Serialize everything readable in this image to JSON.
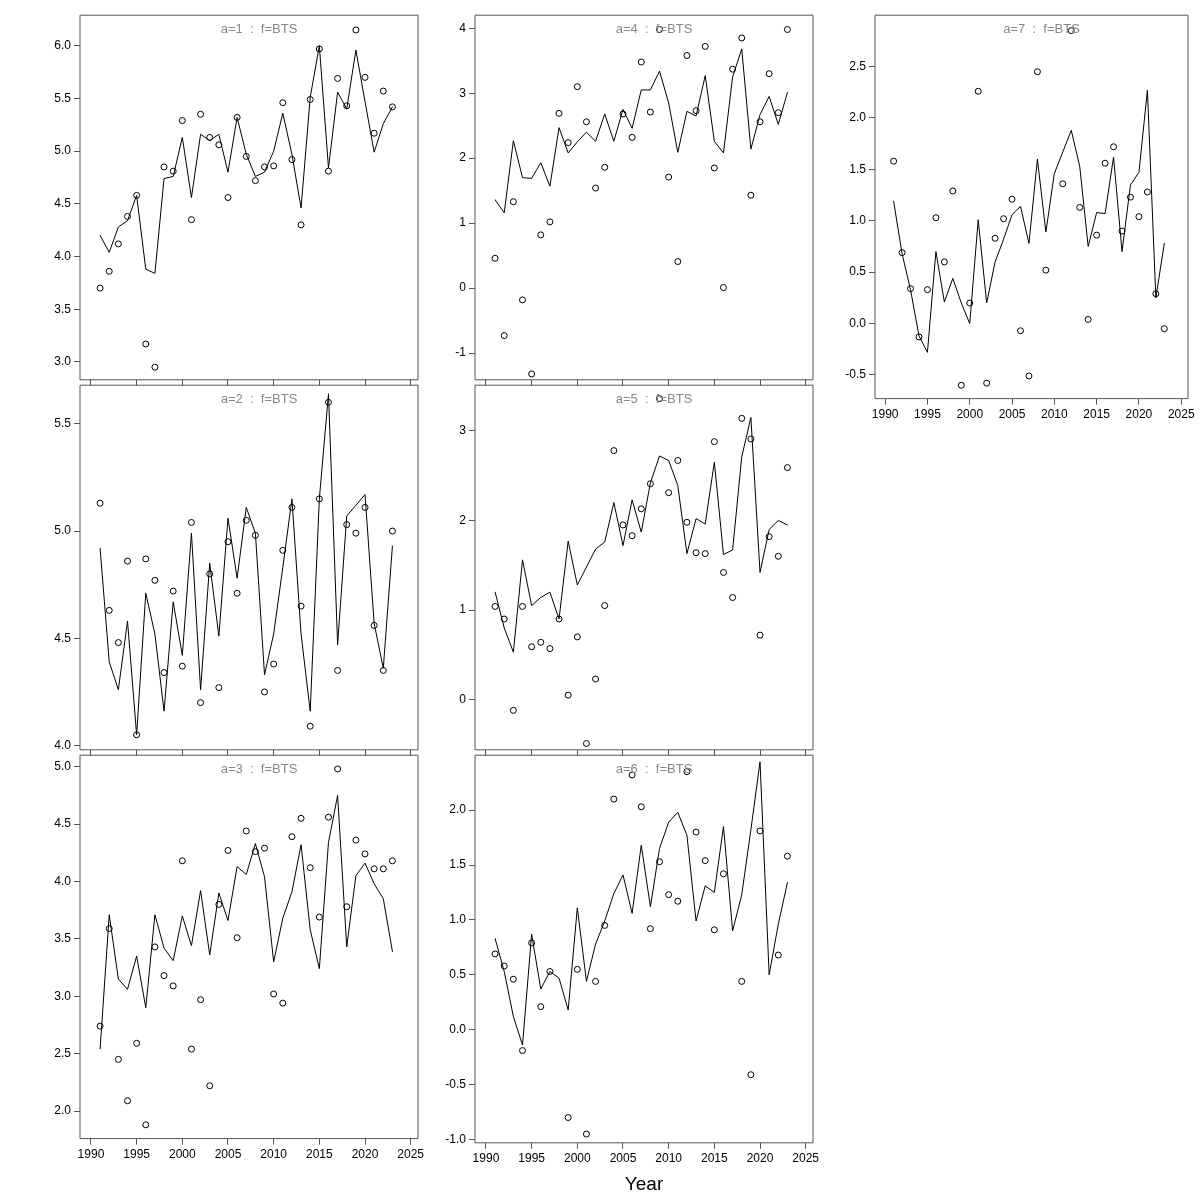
{
  "chart_data": [
    {
      "type": "line",
      "title": "a=1  :  f=BTS",
      "x": [
        1991,
        1992,
        1993,
        1994,
        1995,
        1996,
        1997,
        1998,
        1999,
        2000,
        2001,
        2002,
        2003,
        2004,
        2005,
        2006,
        2007,
        2008,
        2009,
        2010,
        2011,
        2012,
        2013,
        2014,
        2015,
        2016,
        2017,
        2018,
        2019,
        2020,
        2021,
        2022,
        2023
      ],
      "xlim": [
        1988.8,
        2025.8
      ],
      "xticks": [
        1990,
        1995,
        2000,
        2005,
        2010,
        2015,
        2020,
        2025
      ],
      "ylim": [
        2.83,
        6.29
      ],
      "yticks": [
        {
          "value": 3,
          "label": "3.0"
        },
        3.5,
        {
          "value": 4,
          "label": "4.0"
        },
        4.5,
        {
          "value": 5,
          "label": "5.0"
        },
        5.5,
        {
          "value": 6,
          "label": "6.0"
        }
      ],
      "tick_labels": "y",
      "series": [
        {
          "type": "scatter",
          "marker": "circle",
          "color": "#000000",
          "values": [
            3.7,
            3.86,
            4.12,
            4.38,
            4.58,
            3.17,
            2.95,
            4.85,
            4.81,
            5.29,
            4.35,
            5.35,
            5.13,
            5.06,
            4.56,
            5.32,
            4.95,
            4.72,
            4.85,
            4.86,
            5.46,
            4.92,
            4.3,
            5.49,
            5.97,
            4.81,
            5.69,
            5.43,
            6.15,
            5.7,
            5.17,
            5.57,
            5.42
          ]
        },
        {
          "type": "line",
          "marker": "none",
          "color": "#000000",
          "values": [
            4.2,
            4.04,
            4.28,
            4.34,
            4.58,
            3.88,
            3.84,
            4.74,
            4.76,
            5.13,
            4.56,
            5.16,
            5.1,
            5.16,
            4.8,
            5.32,
            4.97,
            4.76,
            4.8,
            5.0,
            5.36,
            4.97,
            4.46,
            5.51,
            6.0,
            4.84,
            5.56,
            5.4,
            5.96,
            5.47,
            4.99,
            5.26,
            5.42
          ]
        }
      ]
    },
    {
      "type": "line",
      "title": "a=4  :  f=BTS",
      "x": [
        1991,
        1992,
        1993,
        1994,
        1995,
        1996,
        1997,
        1998,
        1999,
        2000,
        2001,
        2002,
        2003,
        2004,
        2005,
        2006,
        2007,
        2008,
        2009,
        2010,
        2011,
        2012,
        2013,
        2014,
        2015,
        2016,
        2017,
        2018,
        2019,
        2020,
        2021,
        2022,
        2023
      ],
      "xlim": [
        1988.8,
        2025.8
      ],
      "xticks": [
        1990,
        1995,
        2000,
        2005,
        2010,
        2015,
        2020,
        2025
      ],
      "ylim": [
        -1.41,
        4.2
      ],
      "yticks": [
        -1,
        0,
        1,
        2,
        3,
        4
      ],
      "tick_labels": "y",
      "series": [
        {
          "type": "scatter",
          "marker": "circle",
          "color": "#000000",
          "values": [
            0.46,
            -0.73,
            1.33,
            -0.18,
            -1.32,
            0.82,
            1.02,
            2.69,
            2.24,
            3.1,
            2.56,
            1.54,
            1.86,
            null,
            2.68,
            2.32,
            3.48,
            2.71,
            3.98,
            1.71,
            0.41,
            3.58,
            2.73,
            3.72,
            1.85,
            0.01,
            3.37,
            3.85,
            1.43,
            2.56,
            3.3,
            2.7,
            3.98
          ]
        },
        {
          "type": "line",
          "marker": "none",
          "color": "#000000",
          "values": [
            1.36,
            1.16,
            2.27,
            1.7,
            1.69,
            1.93,
            1.57,
            2.47,
            2.08,
            2.25,
            2.4,
            2.26,
            2.68,
            2.26,
            2.75,
            2.46,
            3.05,
            3.05,
            3.34,
            2.85,
            2.09,
            2.72,
            2.65,
            3.27,
            2.26,
            2.08,
            3.25,
            3.68,
            2.14,
            2.67,
            2.95,
            2.52,
            3.01
          ]
        }
      ]
    },
    {
      "type": "line",
      "title": "a=7  :  f=BTS",
      "x": [
        1991,
        1992,
        1993,
        1994,
        1995,
        1996,
        1997,
        1998,
        1999,
        2000,
        2001,
        2002,
        2003,
        2004,
        2005,
        2006,
        2007,
        2008,
        2009,
        2010,
        2011,
        2012,
        2013,
        2014,
        2015,
        2016,
        2017,
        2018,
        2019,
        2020,
        2021,
        2022,
        2023
      ],
      "xlim": [
        1988.8,
        2025.8
      ],
      "xticks": [
        1990,
        1995,
        2000,
        2005,
        2010,
        2015,
        2020,
        2025
      ],
      "ylim": [
        -0.73,
        3.0
      ],
      "yticks": [
        -0.5,
        {
          "value": 0,
          "label": "0.0"
        },
        0.5,
        {
          "value": 1,
          "label": "1.0"
        },
        1.5,
        {
          "value": 2,
          "label": "2.0"
        },
        2.5
      ],
      "series": [
        {
          "type": "scatter",
          "marker": "circle",
          "color": "#000000",
          "values": [
            1.58,
            0.69,
            0.34,
            -0.13,
            0.33,
            1.03,
            0.6,
            1.29,
            -0.6,
            0.2,
            2.26,
            -0.58,
            0.83,
            1.02,
            1.21,
            -0.07,
            -0.51,
            2.45,
            0.52,
            null,
            1.36,
            2.85,
            1.13,
            0.04,
            0.86,
            1.56,
            1.72,
            0.9,
            1.23,
            1.04,
            1.28,
            0.29,
            -0.05
          ]
        },
        {
          "type": "line",
          "marker": "none",
          "color": "#000000",
          "values": [
            1.19,
            0.68,
            0.33,
            -0.12,
            -0.28,
            0.7,
            0.21,
            0.44,
            0.2,
            0.0,
            1.01,
            0.2,
            0.6,
            0.82,
            1.06,
            1.14,
            0.78,
            1.6,
            0.89,
            1.46,
            1.67,
            1.88,
            1.53,
            0.75,
            1.08,
            1.07,
            1.62,
            0.7,
            1.35,
            1.47,
            2.27,
            0.25,
            0.78
          ]
        }
      ]
    },
    {
      "type": "line",
      "title": "a=2  :  f=BTS",
      "x": [
        1991,
        1992,
        1993,
        1994,
        1995,
        1996,
        1997,
        1998,
        1999,
        2000,
        2001,
        2002,
        2003,
        2004,
        2005,
        2006,
        2007,
        2008,
        2009,
        2010,
        2011,
        2012,
        2013,
        2014,
        2015,
        2016,
        2017,
        2018,
        2019,
        2020,
        2021,
        2022,
        2023
      ],
      "xlim": [
        1988.8,
        2025.8
      ],
      "xticks": [
        1990,
        1995,
        2000,
        2005,
        2010,
        2015,
        2020,
        2025
      ],
      "ylim": [
        3.98,
        5.68
      ],
      "yticks": [
        {
          "value": 4,
          "label": "4.0"
        },
        4.5,
        {
          "value": 5,
          "label": "5.0"
        },
        5.5
      ],
      "tick_labels": "y",
      "series": [
        {
          "type": "scatter",
          "marker": "circle",
          "color": "#000000",
          "values": [
            5.13,
            4.63,
            4.48,
            4.86,
            4.05,
            4.87,
            4.77,
            4.34,
            4.72,
            4.37,
            5.04,
            4.2,
            4.8,
            4.27,
            4.95,
            4.71,
            5.05,
            4.98,
            4.25,
            4.38,
            4.91,
            5.11,
            4.65,
            4.09,
            5.15,
            5.6,
            4.35,
            5.03,
            4.99,
            5.11,
            4.56,
            4.35,
            5.0
          ]
        },
        {
          "type": "line",
          "marker": "none",
          "color": "#000000",
          "values": [
            4.92,
            4.39,
            4.26,
            4.58,
            4.05,
            4.71,
            4.52,
            4.16,
            4.67,
            4.42,
            4.99,
            4.26,
            4.85,
            4.51,
            5.06,
            4.78,
            5.11,
            4.99,
            4.33,
            4.52,
            4.83,
            5.15,
            4.52,
            4.16,
            5.15,
            5.64,
            4.47,
            5.07,
            5.12,
            5.17,
            4.57,
            4.36,
            4.93
          ]
        }
      ]
    },
    {
      "type": "line",
      "title": "a=5  :  f=BTS",
      "x": [
        1991,
        1992,
        1993,
        1994,
        1995,
        1996,
        1997,
        1998,
        1999,
        2000,
        2001,
        2002,
        2003,
        2004,
        2005,
        2006,
        2007,
        2008,
        2009,
        2010,
        2011,
        2012,
        2013,
        2014,
        2015,
        2016,
        2017,
        2018,
        2019,
        2020,
        2021,
        2022,
        2023
      ],
      "xlim": [
        1988.8,
        2025.8
      ],
      "xticks": [
        1990,
        1995,
        2000,
        2005,
        2010,
        2015,
        2020,
        2025
      ],
      "ylim": [
        -0.56,
        3.51
      ],
      "yticks": [
        0,
        1,
        2,
        3
      ],
      "tick_labels": "y",
      "series": [
        {
          "type": "scatter",
          "marker": "circle",
          "color": "#000000",
          "values": [
            1.04,
            0.9,
            -0.12,
            1.04,
            0.59,
            0.64,
            0.57,
            0.9,
            0.05,
            0.7,
            -0.49,
            0.23,
            1.05,
            2.78,
            1.95,
            1.83,
            2.13,
            2.41,
            3.36,
            2.31,
            2.67,
            1.98,
            1.64,
            1.63,
            2.88,
            1.42,
            1.14,
            3.14,
            2.91,
            0.72,
            1.82,
            1.6,
            2.59
          ]
        },
        {
          "type": "line",
          "marker": "none",
          "color": "#000000",
          "values": [
            1.2,
            0.8,
            0.53,
            1.56,
            1.05,
            1.14,
            1.2,
            0.9,
            1.77,
            1.28,
            1.48,
            1.68,
            1.76,
            2.2,
            1.72,
            2.23,
            1.87,
            2.42,
            2.72,
            2.67,
            2.39,
            1.63,
            2.02,
            1.96,
            2.65,
            1.62,
            1.67,
            2.71,
            3.15,
            1.42,
            1.9,
            2.0,
            1.95
          ]
        }
      ]
    },
    {
      "type": "line",
      "title": "a=3  :  f=BTS",
      "x": [
        1991,
        1992,
        1993,
        1994,
        1995,
        1996,
        1997,
        1998,
        1999,
        2000,
        2001,
        2002,
        2003,
        2004,
        2005,
        2006,
        2007,
        2008,
        2009,
        2010,
        2011,
        2012,
        2013,
        2014,
        2015,
        2016,
        2017,
        2018,
        2019,
        2020,
        2021,
        2022,
        2023
      ],
      "xlim": [
        1988.8,
        2025.8
      ],
      "xticks": [
        1990,
        1995,
        2000,
        2005,
        2010,
        2015,
        2020,
        2025
      ],
      "ylim": [
        1.76,
        5.1
      ],
      "yticks": [
        {
          "value": 2,
          "label": "2.0"
        },
        2.5,
        {
          "value": 3,
          "label": "3.0"
        },
        3.5,
        {
          "value": 4,
          "label": "4.0"
        },
        4.5,
        {
          "value": 5,
          "label": "5.0"
        }
      ],
      "series": [
        {
          "type": "scatter",
          "marker": "circle",
          "color": "#000000",
          "values": [
            2.74,
            3.59,
            2.45,
            2.09,
            2.59,
            1.88,
            3.43,
            3.18,
            3.09,
            4.18,
            2.54,
            2.97,
            2.22,
            3.8,
            4.27,
            3.51,
            4.44,
            4.26,
            4.29,
            3.02,
            2.94,
            4.39,
            4.55,
            4.12,
            3.69,
            4.56,
            4.98,
            3.78,
            4.36,
            4.24,
            4.11,
            4.11,
            4.18
          ]
        },
        {
          "type": "line",
          "marker": "none",
          "color": "#000000",
          "values": [
            2.54,
            3.71,
            3.15,
            3.06,
            3.35,
            2.9,
            3.71,
            3.42,
            3.31,
            3.7,
            3.44,
            3.92,
            3.36,
            3.9,
            3.66,
            4.13,
            4.06,
            4.33,
            4.04,
            3.3,
            3.68,
            3.91,
            4.32,
            3.58,
            3.24,
            4.34,
            4.75,
            3.43,
            4.05,
            4.16,
            3.98,
            3.85,
            3.39
          ]
        }
      ]
    },
    {
      "type": "line",
      "title": "a=6  :  f=BTS",
      "xlabel": "Year",
      "x": [
        1991,
        1992,
        1993,
        1994,
        1995,
        1996,
        1997,
        1998,
        1999,
        2000,
        2001,
        2002,
        2003,
        2004,
        2005,
        2006,
        2007,
        2008,
        2009,
        2010,
        2011,
        2012,
        2013,
        2014,
        2015,
        2016,
        2017,
        2018,
        2019,
        2020,
        2021,
        2022,
        2023
      ],
      "xlim": [
        1988.8,
        2025.8
      ],
      "xticks": [
        1990,
        1995,
        2000,
        2005,
        2010,
        2015,
        2020,
        2025
      ],
      "ylim": [
        -1.03,
        2.5
      ],
      "yticks": [
        {
          "value": -1,
          "label": "-1.0"
        },
        -0.5,
        {
          "value": 0,
          "label": "0.0"
        },
        0.5,
        {
          "value": 1,
          "label": "1.0"
        },
        1.5,
        {
          "value": 2,
          "label": "2.0"
        }
      ],
      "series": [
        {
          "type": "scatter",
          "marker": "circle",
          "color": "#000000",
          "values": [
            0.69,
            0.58,
            0.46,
            -0.19,
            0.79,
            0.21,
            0.53,
            null,
            -0.8,
            0.55,
            -0.95,
            0.44,
            0.95,
            2.1,
            null,
            2.32,
            2.03,
            0.92,
            1.53,
            1.23,
            1.17,
            2.35,
            1.8,
            1.54,
            0.91,
            1.42,
            null,
            0.44,
            -0.41,
            1.81,
            null,
            0.68,
            1.58
          ]
        },
        {
          "type": "line",
          "marker": "none",
          "color": "#000000",
          "values": [
            0.83,
            0.53,
            0.12,
            -0.14,
            0.87,
            0.37,
            0.53,
            0.47,
            0.18,
            1.11,
            0.44,
            0.78,
            0.99,
            1.24,
            1.41,
            1.06,
            1.68,
            1.12,
            1.65,
            1.89,
            1.98,
            1.77,
            0.99,
            1.31,
            1.25,
            1.85,
            0.9,
            1.23,
            1.82,
            2.44,
            0.5,
            0.96,
            1.34
          ]
        }
      ]
    }
  ]
}
